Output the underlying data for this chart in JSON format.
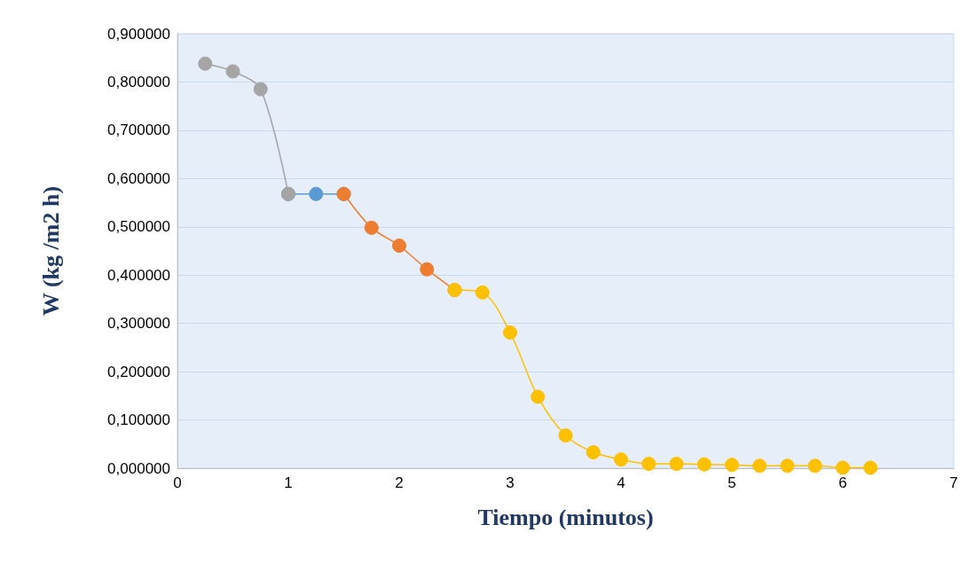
{
  "chart_data": {
    "type": "line",
    "xlabel": "Tiempo (minutos)",
    "ylabel": "W (kg /m2 h)",
    "series": [
      {
        "color": "#5b9bd5",
        "x": [
          1,
          1.25,
          1.5
        ],
        "values": [
          0.568,
          0.568,
          0.568
        ]
      },
      {
        "color": "#ed7d31",
        "x": [
          1.5,
          1.75,
          2,
          2.25,
          2.5
        ],
        "values": [
          0.568,
          0.498,
          0.461,
          0.412,
          0.369
        ]
      },
      {
        "color": "#a5a5a5",
        "x": [
          0.25,
          0.5,
          0.75,
          1
        ],
        "values": [
          0.838,
          0.822,
          0.785,
          0.568
        ]
      },
      {
        "color": "#ffc000",
        "x": [
          2.5,
          2.75,
          3,
          3.25,
          3.5,
          3.75,
          4,
          4.25,
          4.5,
          4.75,
          5,
          5.25,
          5.5,
          5.75,
          6,
          6.25
        ],
        "values": [
          0.369,
          0.364,
          0.281,
          0.148,
          0.068,
          0.033,
          0.018,
          0.009,
          0.009,
          0.008,
          0.007,
          0.005,
          0.005,
          0.005,
          0.001,
          0.001
        ]
      }
    ],
    "xlim": [
      0,
      7
    ],
    "xticks": [
      0,
      1,
      2,
      3,
      4,
      5,
      6,
      7
    ],
    "ylim": [
      0,
      0.9
    ],
    "yticks": [
      {
        "value": 0,
        "label": "0,000000"
      },
      {
        "value": 0.1,
        "label": "0,100000"
      },
      {
        "value": 0.2,
        "label": "0,200000"
      },
      {
        "value": 0.3,
        "label": "0,300000"
      },
      {
        "value": 0.4,
        "label": "0,400000"
      },
      {
        "value": 0.5,
        "label": "0,500000"
      },
      {
        "value": 0.6,
        "label": "0,600000"
      },
      {
        "value": 0.7,
        "label": "0,700000"
      },
      {
        "value": 0.8,
        "label": "0,800000"
      },
      {
        "value": 0.9,
        "label": "0,900000"
      }
    ],
    "grid": "y",
    "marker": "circle",
    "line_style": "solid"
  }
}
